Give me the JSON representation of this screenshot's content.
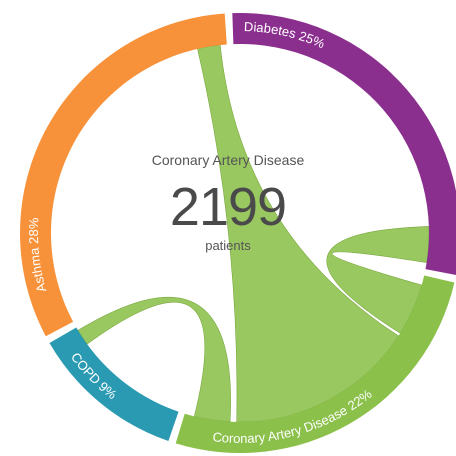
{
  "chart_data": {
    "type": "chord",
    "center": {
      "title": "Coronary Artery Disease",
      "value": "2199",
      "unit": "patients"
    },
    "segments": [
      {
        "label": "Diabetes 25%",
        "name": "Diabetes",
        "percent": 25,
        "color": "#8b2f8f"
      },
      {
        "label": "Coronary Artery Disease 22%",
        "name": "Coronary Artery Disease",
        "percent": 22,
        "color": "#8bc04a"
      },
      {
        "label": "COPD 9%",
        "name": "COPD",
        "percent": 9,
        "color": "#2a9ab3"
      },
      {
        "label": "Asthma 28%",
        "name": "Asthma",
        "percent": 28,
        "color": "#f7923a"
      }
    ],
    "highlighted": "Coronary Artery Disease",
    "chord_color": "#8bc04a"
  }
}
